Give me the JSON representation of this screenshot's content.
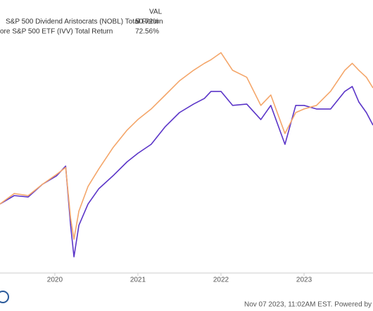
{
  "chart_data": {
    "type": "line",
    "legend_header": "VAL",
    "footer": "Nov 07 2023, 11:02AM EST. Powered by",
    "x": [
      2019.34,
      2019.51,
      2019.68,
      2019.85,
      2020.02,
      2020.13,
      2020.19,
      2020.23,
      2020.29,
      2020.4,
      2020.53,
      2020.7,
      2020.87,
      2021.0,
      2021.16,
      2021.33,
      2021.5,
      2021.67,
      2021.8,
      2021.88,
      2022.0,
      2022.14,
      2022.31,
      2022.48,
      2022.6,
      2022.77,
      2022.9,
      2023.0,
      2023.15,
      2023.32,
      2023.49,
      2023.58,
      2023.66,
      2023.75,
      2023.83
    ],
    "xlim": [
      2019.34,
      2023.83
    ],
    "xticks": [
      2020,
      2021,
      2022,
      2023
    ],
    "ylim": [
      -36,
      120
    ],
    "series": [
      {
        "name": "S&P 500 Dividend Aristocrats (NOBL) Total Return",
        "color": "#5b35c8",
        "value_label": "50.72%",
        "values": [
          4.5,
          9.4,
          8.6,
          16.0,
          21.0,
          26.7,
          -8.0,
          -26.5,
          -8.0,
          4.5,
          13.5,
          21.0,
          29.2,
          34.2,
          39.5,
          49.9,
          58.1,
          63.1,
          66.4,
          70.5,
          70.5,
          62.3,
          63.1,
          54.0,
          62.3,
          39.5,
          62.3,
          62.3,
          60.2,
          60.2,
          70.5,
          73.4,
          64.3,
          58.1,
          50.72
        ]
      },
      {
        "name": "ore S&P 500 ETF (IVV) Total Return",
        "color": "#f4a66a",
        "value_label": "72.56%",
        "values": [
          4.5,
          10.6,
          9.4,
          16.0,
          21.8,
          25.9,
          -3.8,
          -16.2,
          0.3,
          14.8,
          25.1,
          37.5,
          47.8,
          54.0,
          60.2,
          68.4,
          76.7,
          82.9,
          87.0,
          89.1,
          93.2,
          82.9,
          78.8,
          62.3,
          68.4,
          45.8,
          58.1,
          60.2,
          62.3,
          70.6,
          82.9,
          87.0,
          82.9,
          78.8,
          72.56
        ]
      }
    ]
  }
}
